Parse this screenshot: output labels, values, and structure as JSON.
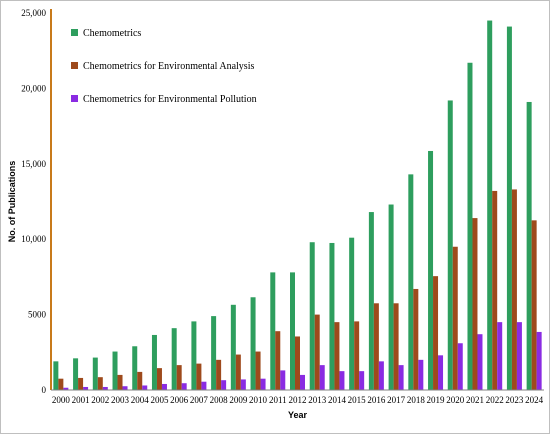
{
  "chart_data": {
    "type": "bar",
    "xlabel": "Year",
    "ylabel": "No. of Publications",
    "ylim": [
      0,
      25000
    ],
    "yticks": [
      0,
      5000,
      10000,
      15000,
      20000,
      25000
    ],
    "ytick_labels": [
      "0",
      "5000",
      "10,000",
      "15,000",
      "20,000",
      "25,000"
    ],
    "grid": false,
    "legend_position": "top-left",
    "categories": [
      "2000",
      "2001",
      "2002",
      "2003",
      "2004",
      "2005",
      "2006",
      "2007",
      "2008",
      "2009",
      "2010",
      "2011",
      "2012",
      "2013",
      "2014",
      "2015",
      "2016",
      "2017",
      "2018",
      "2019",
      "2020",
      "2021",
      "2022",
      "2023",
      "2024"
    ],
    "series": [
      {
        "name": "Chemometrics",
        "color": "#2e9e5e",
        "values": [
          1900,
          2100,
          2150,
          2550,
          2900,
          3650,
          4100,
          4550,
          4900,
          5650,
          6150,
          7800,
          7800,
          9800,
          9750,
          10100,
          11800,
          12300,
          14300,
          15850,
          19200,
          21700,
          24500,
          24100,
          19100
        ]
      },
      {
        "name": "Chemometrics for Environmental Analysis",
        "color": "#9e4a1c",
        "values": [
          750,
          800,
          850,
          1000,
          1200,
          1450,
          1650,
          1750,
          2000,
          2350,
          2550,
          3900,
          3550,
          5000,
          4500,
          4550,
          5750,
          5750,
          6700,
          7550,
          9500,
          11400,
          13200,
          13300,
          11250
        ]
      },
      {
        "name": "Chemometrics for Environmental Pollution",
        "color": "#8a2be2",
        "values": [
          150,
          200,
          200,
          250,
          300,
          400,
          450,
          550,
          650,
          700,
          750,
          1300,
          1000,
          1650,
          1250,
          1250,
          1900,
          1650,
          2000,
          2300,
          3100,
          3700,
          4500,
          4500,
          3850
        ]
      }
    ]
  }
}
